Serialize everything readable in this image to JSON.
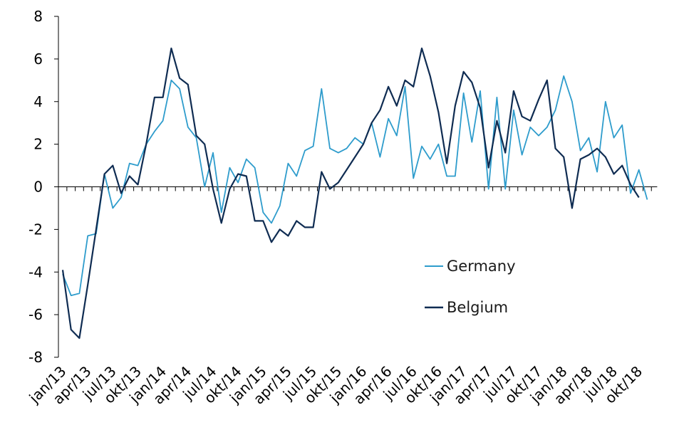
{
  "chart_data": {
    "type": "line",
    "title": "",
    "xlabel": "",
    "ylabel": "",
    "ylim": [
      -8,
      8
    ],
    "yticks": [
      -8,
      -6,
      -4,
      -2,
      0,
      2,
      4,
      6,
      8
    ],
    "grid": false,
    "legend_position": "right-center",
    "x": [
      "jan/13",
      "feb/13",
      "mar/13",
      "apr/13",
      "mai/13",
      "jun/13",
      "jul/13",
      "aug/13",
      "sep/13",
      "okt/13",
      "nov/13",
      "des/13",
      "jan/14",
      "feb/14",
      "mar/14",
      "apr/14",
      "mai/14",
      "jun/14",
      "jul/14",
      "aug/14",
      "sep/14",
      "okt/14",
      "nov/14",
      "des/14",
      "jan/15",
      "feb/15",
      "mar/15",
      "apr/15",
      "mai/15",
      "jun/15",
      "jul/15",
      "aug/15",
      "sep/15",
      "okt/15",
      "nov/15",
      "des/15",
      "jan/16",
      "feb/16",
      "mar/16",
      "apr/16",
      "mai/16",
      "jun/16",
      "jul/16",
      "aug/16",
      "sep/16",
      "okt/16",
      "nov/16",
      "des/16",
      "jan/17",
      "feb/17",
      "mar/17",
      "apr/17",
      "mai/17",
      "jun/17",
      "jul/17",
      "aug/17",
      "sep/17",
      "okt/17",
      "nov/17",
      "des/17",
      "jan/18",
      "feb/18",
      "mar/18",
      "apr/18",
      "mai/18",
      "jun/18",
      "jul/18",
      "aug/18",
      "sep/18",
      "okt/18",
      "nov/18"
    ],
    "x_tick_labels": [
      "jan/13",
      "apr/13",
      "jul/13",
      "okt/13",
      "jan/14",
      "apr/14",
      "jul/14",
      "okt/14",
      "jan/15",
      "apr/15",
      "jul/15",
      "okt/15",
      "jan/16",
      "apr/16",
      "jul/16",
      "okt/16",
      "jan/17",
      "apr/17",
      "jul/17",
      "okt/17",
      "jan/18",
      "apr/18",
      "jul/18",
      "okt/18"
    ],
    "series": [
      {
        "name": "Germany",
        "color": "#2e9ccc",
        "values": [
          -4.1,
          -5.1,
          -5.0,
          -2.3,
          -2.2,
          0.6,
          -1.0,
          -0.5,
          1.1,
          1.0,
          2.0,
          2.6,
          3.1,
          5.0,
          4.6,
          2.8,
          2.3,
          0.0,
          1.6,
          -1.2,
          0.9,
          0.2,
          1.3,
          0.9,
          -1.2,
          -1.7,
          -0.9,
          1.1,
          0.5,
          1.7,
          1.9,
          4.6,
          1.8,
          1.6,
          1.8,
          2.3,
          2.0,
          3.0,
          1.4,
          3.2,
          2.4,
          4.7,
          0.4,
          1.9,
          1.3,
          2.0,
          0.5,
          0.5,
          4.4,
          2.1,
          4.5,
          -0.1,
          4.2,
          -0.1,
          3.6,
          1.5,
          2.8,
          2.4,
          2.8,
          3.6,
          5.2,
          4.0,
          1.7,
          2.3,
          0.7,
          4.0,
          2.3,
          2.9,
          -0.3,
          0.8,
          -0.6
        ]
      },
      {
        "name": "Belgium",
        "color": "#0f2c52",
        "values": [
          -3.9,
          -6.7,
          -7.1,
          -4.6,
          -2.0,
          0.6,
          1.0,
          -0.3,
          0.5,
          0.1,
          2.0,
          4.2,
          4.2,
          6.5,
          5.1,
          4.8,
          2.4,
          2.0,
          -0.1,
          -1.7,
          -0.1,
          0.6,
          0.5,
          -1.6,
          -1.6,
          -2.6,
          -2.0,
          -2.3,
          -1.6,
          -1.9,
          -1.9,
          0.7,
          -0.1,
          0.2,
          0.8,
          1.4,
          2.0,
          3.0,
          3.6,
          4.7,
          3.8,
          5.0,
          4.7,
          6.5,
          5.2,
          3.5,
          1.1,
          3.8,
          5.4,
          4.9,
          3.7,
          0.9,
          3.1,
          1.6,
          4.5,
          3.3,
          3.1,
          4.1,
          5.0,
          1.8,
          1.4,
          -1.0,
          1.3,
          1.5,
          1.8,
          1.4,
          0.6,
          1.0,
          0.1,
          -0.5,
          null
        ]
      }
    ]
  }
}
